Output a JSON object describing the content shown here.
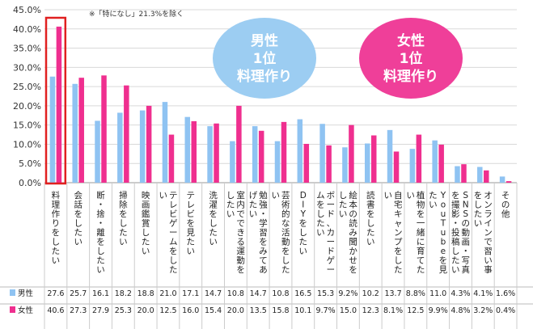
{
  "chart_data": {
    "type": "bar",
    "ylim": [
      0,
      45
    ],
    "ytick_step": 5,
    "ytick_suffix": "%",
    "note": "※「特になし」21.3%を除く",
    "categories": [
      "料理作りをしたい",
      "会話をしたい",
      "断・捨・離をしたい",
      "掃除をしたい",
      "映画鑑賞したい",
      "テレビゲームをしたい",
      "テレビを見たい",
      "洗濯をしたい",
      "室内でできる運動をしたい",
      "勉強・学習をみてあげたい",
      "芸術的な活動をしたい",
      "DIYをしたい",
      "ボード、カードゲームをしたい",
      "絵本の読み聞かせをしたい",
      "読書をしたい",
      "自宅キャンプをしたい",
      "植物を一緒に育てたい",
      "YouTubeを見たい",
      "SNSの動画・写真を撮影・投稿したい",
      "オンラインで習い事をしたい",
      "その他"
    ],
    "series": [
      {
        "name": "男性",
        "color": "#8fc3f2",
        "values": [
          27.6,
          25.7,
          16.1,
          18.2,
          18.8,
          21.0,
          17.1,
          14.7,
          10.8,
          14.7,
          10.8,
          16.5,
          15.3,
          9.2,
          10.2,
          13.7,
          8.8,
          11.0,
          4.3,
          4.1,
          1.6
        ],
        "labels": [
          "27.6",
          "25.7",
          "16.1",
          "18.2",
          "18.8",
          "21.0",
          "17.1",
          "14.7",
          "10.8",
          "14.7",
          "10.8",
          "16.5",
          "15.3",
          "9.2%",
          "10.2",
          "13.7",
          "8.8%",
          "11.0",
          "4.3%",
          "4.1%",
          "1.6%"
        ]
      },
      {
        "name": "女性",
        "color": "#ef2f8f",
        "values": [
          40.6,
          27.3,
          27.9,
          25.3,
          20.0,
          12.5,
          16.0,
          15.4,
          20.0,
          13.5,
          15.8,
          10.1,
          9.7,
          15.0,
          12.3,
          8.1,
          12.5,
          9.9,
          4.8,
          3.2,
          0.4
        ],
        "labels": [
          "40.6",
          "27.3",
          "27.9",
          "25.3",
          "20.0",
          "12.5",
          "16.0",
          "15.4",
          "20.0",
          "13.5",
          "15.8",
          "10.1",
          "9.7%",
          "15.0",
          "12.3",
          "8.1%",
          "12.5",
          "9.9%",
          "4.8%",
          "3.2%",
          "0.4%"
        ]
      }
    ],
    "highlight_index": 0,
    "highlight_color": "#e02020",
    "callouts": [
      {
        "lines": [
          "男性",
          "1位",
          "料理作り"
        ],
        "color": "#9ccdf2"
      },
      {
        "lines": [
          "女性",
          "1位",
          "料理作り"
        ],
        "color": "#ef3f99"
      }
    ]
  }
}
